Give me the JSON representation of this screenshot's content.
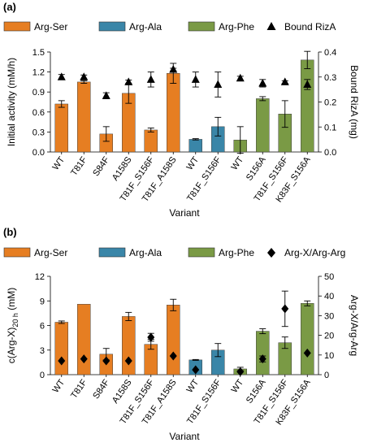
{
  "colors": {
    "Arg-Ser": "#e67e22",
    "Arg-Ala": "#3a86a8",
    "Arg-Phe": "#7a9a45",
    "axis": "#000000"
  },
  "chart_data": [
    {
      "type": "bar",
      "panel_label": "(a)",
      "categories": [
        "WT",
        "T81F",
        "S84F",
        "A158S",
        "T81F_S156F",
        "T81F_A158S",
        "WT",
        "T81F_S156F",
        "WT",
        "S156A",
        "T81F_S156F",
        "K83F_S156A"
      ],
      "bar_groups": [
        "Arg-Ser",
        "Arg-Ser",
        "Arg-Ser",
        "Arg-Ser",
        "Arg-Ser",
        "Arg-Ser",
        "Arg-Ala",
        "Arg-Ala",
        "Arg-Phe",
        "Arg-Phe",
        "Arg-Phe",
        "Arg-Phe"
      ],
      "legend": [
        "Arg-Ser",
        "Arg-Ala",
        "Arg-Phe",
        "Bound RizA"
      ],
      "series": [
        {
          "name": "Initial activity",
          "axis": "left",
          "values": [
            0.72,
            1.05,
            0.27,
            0.88,
            0.33,
            1.18,
            0.19,
            0.38,
            0.18,
            0.8,
            0.57,
            1.38
          ],
          "errors": [
            0.05,
            0.02,
            0.11,
            0.15,
            0.03,
            0.15,
            0.01,
            0.14,
            0.2,
            0.03,
            0.2,
            0.13
          ]
        },
        {
          "name": "Bound RizA",
          "axis": "right",
          "marker": "triangle",
          "values": [
            0.3,
            0.3,
            0.225,
            0.28,
            0.29,
            0.33,
            0.29,
            0.27,
            0.295,
            0.275,
            0.28,
            0.27
          ],
          "errors": [
            0.01,
            0.008,
            0.012,
            0.008,
            0.03,
            0.005,
            0.03,
            0.05,
            0.008,
            0.015,
            0.005,
            0.02
          ]
        }
      ],
      "xlabel": "Variant",
      "ylabel_left": "Initial activity (mM/h)",
      "ylabel_right": "Bound RizA (mg)",
      "ylim_left": [
        0,
        1.5
      ],
      "yticks_left": [
        "0.0",
        "0.3",
        "0.6",
        "0.9",
        "1.2",
        "1.5"
      ],
      "ylim_right": [
        0,
        0.4
      ],
      "yticks_right": [
        "0.0",
        "0.1",
        "0.2",
        "0.3",
        "0.4"
      ],
      "grid": false
    },
    {
      "type": "bar",
      "panel_label": "(b)",
      "categories": [
        "WT",
        "T81F",
        "S84F",
        "A158S",
        "T81F_S156F",
        "T81F_A158S",
        "WT",
        "T81F_S156F",
        "WT",
        "S156A",
        "T81F_S156F",
        "K83F_S156A"
      ],
      "bar_groups": [
        "Arg-Ser",
        "Arg-Ser",
        "Arg-Ser",
        "Arg-Ser",
        "Arg-Ser",
        "Arg-Ser",
        "Arg-Ala",
        "Arg-Ala",
        "Arg-Phe",
        "Arg-Phe",
        "Arg-Phe",
        "Arg-Phe"
      ],
      "legend": [
        "Arg-Ser",
        "Arg-Ala",
        "Arg-Phe",
        "Arg-X/Arg-Arg"
      ],
      "series": [
        {
          "name": "c(Arg-X)",
          "axis": "left",
          "values": [
            6.4,
            8.6,
            2.5,
            7.1,
            3.7,
            8.5,
            1.8,
            3.0,
            0.7,
            5.3,
            3.9,
            8.7
          ],
          "errors": [
            0.15,
            0.0,
            0.7,
            0.5,
            0.6,
            0.7,
            0.05,
            0.8,
            0.2,
            0.3,
            0.7,
            0.3
          ]
        },
        {
          "name": "Arg-X/Arg-Arg",
          "axis": "right",
          "marker": "diamond",
          "values": [
            7,
            8,
            7,
            7,
            19,
            9.5,
            2.5,
            null,
            1.5,
            8,
            33.5,
            11
          ],
          "errors": [
            0,
            0,
            0,
            0,
            2,
            0,
            0,
            0,
            0,
            1.5,
            9,
            0
          ]
        }
      ],
      "xlabel": "Variant",
      "ylabel_left_main": "c(Arg-X)",
      "ylabel_left_sub": "20 h",
      "ylabel_left_unit": " (mM)",
      "ylabel_right": "Arg-X/Arg-Arg",
      "ylim_left": [
        0,
        12
      ],
      "yticks_left": [
        "0",
        "3",
        "6",
        "9",
        "12"
      ],
      "ylim_right": [
        0,
        50
      ],
      "yticks_right": [
        "0",
        "10",
        "20",
        "30",
        "40",
        "50"
      ],
      "grid": false
    }
  ]
}
